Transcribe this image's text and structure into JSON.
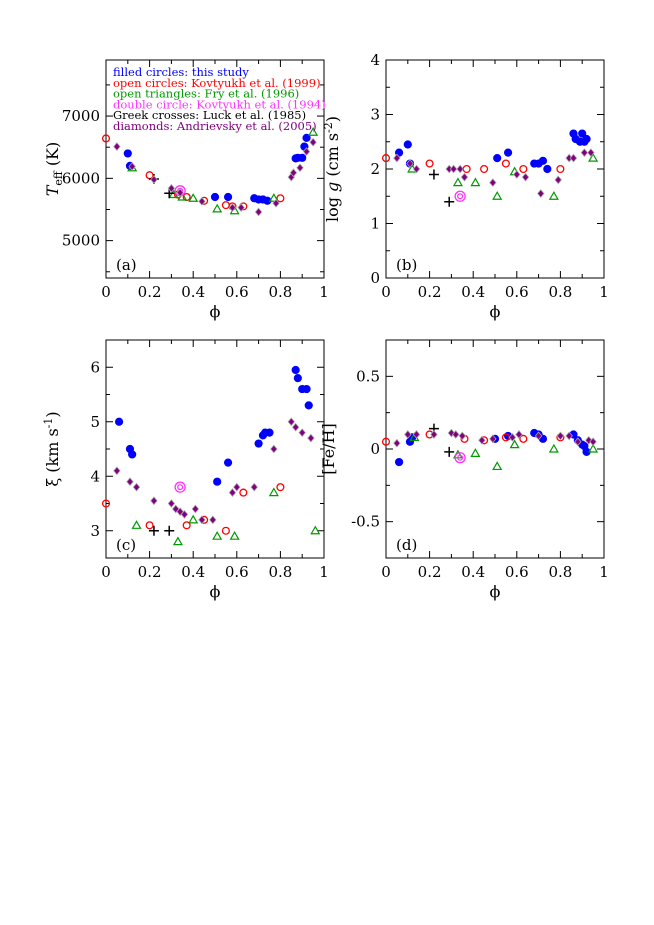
{
  "colors": {
    "this_study": "#0000ff",
    "kovtyukh1999": "#ff0000",
    "fry1996": "#009900",
    "kovtyukh1994": "#ff33ff",
    "luck1985": "#000000",
    "andrievsky2005": "#800080"
  },
  "legend": [
    {
      "text": "filled circles: this study",
      "color": "#0000ff"
    },
    {
      "text": "open circles: Kovtyukh et al. (1999)",
      "color": "#ff0000"
    },
    {
      "text": "open triangles: Fry et al. (1996)",
      "color": "#009900"
    },
    {
      "text": "double circle: Kovtyukh et al. (1994)",
      "color": "#ff33ff"
    },
    {
      "text": "Greek crosses: Luck et al. (1985)",
      "color": "#000000"
    },
    {
      "text": "diamonds: Andrievsky et al. (2005)",
      "color": "#800080"
    }
  ],
  "chart_data": [
    {
      "type": "scatter",
      "panel": "(a)",
      "xlabel": "ϕ",
      "ylabel": "T_eff (K)",
      "xlim": [
        0,
        1
      ],
      "ylim": [
        4400,
        7900
      ],
      "xticks": [
        0,
        0.2,
        0.4,
        0.6,
        0.8,
        1
      ],
      "xtick_labels": [
        "0",
        "0.2",
        "0.4",
        "0.6",
        "0.8",
        "1"
      ],
      "yticks": [
        5000,
        6000,
        7000
      ],
      "ytick_labels": [
        "5000",
        "6000",
        "7000"
      ],
      "grid": false,
      "legend_placement": "top-left",
      "series": [
        {
          "key": "this_study",
          "marker": "filled-circle",
          "x": [
            0.1,
            0.11,
            0.5,
            0.56,
            0.68,
            0.7,
            0.72,
            0.74,
            0.87,
            0.88,
            0.9,
            0.91,
            0.92
          ],
          "y": [
            6400,
            6200,
            5700,
            5700,
            5680,
            5660,
            5660,
            5640,
            6320,
            6330,
            6330,
            6510,
            6650
          ]
        },
        {
          "key": "kovtyukh1999",
          "marker": "open-circle",
          "x": [
            0.0,
            0.2,
            0.33,
            0.37,
            0.45,
            0.55,
            0.58,
            0.63,
            0.8
          ],
          "y": [
            6640,
            6050,
            5740,
            5700,
            5640,
            5570,
            5550,
            5550,
            5680
          ]
        },
        {
          "key": "fry1996",
          "marker": "open-triangle",
          "x": [
            0.12,
            0.31,
            0.35,
            0.4,
            0.51,
            0.59,
            0.77,
            0.95
          ],
          "y": [
            6170,
            5740,
            5700,
            5680,
            5510,
            5480,
            5680,
            6740
          ]
        },
        {
          "key": "kovtyukh1994",
          "marker": "double-circle",
          "x": [
            0.34
          ],
          "y": [
            5800
          ]
        },
        {
          "key": "luck1985",
          "marker": "cross",
          "x": [
            0.22,
            0.29
          ],
          "y": [
            5990,
            5760
          ]
        },
        {
          "key": "andrievsky2005",
          "marker": "diamond",
          "x": [
            0.05,
            0.12,
            0.22,
            0.3,
            0.34,
            0.44,
            0.58,
            0.62,
            0.7,
            0.78,
            0.85,
            0.86,
            0.89,
            0.92,
            0.95
          ],
          "y": [
            6510,
            6190,
            5980,
            5840,
            5770,
            5630,
            5530,
            5530,
            5460,
            5600,
            6020,
            6090,
            6170,
            6430,
            6580
          ]
        }
      ]
    },
    {
      "type": "scatter",
      "panel": "(b)",
      "xlabel": "ϕ",
      "ylabel": "log g (cm s^-2)",
      "xlim": [
        0,
        1
      ],
      "ylim": [
        0,
        4
      ],
      "xticks": [
        0,
        0.2,
        0.4,
        0.6,
        0.8,
        1
      ],
      "xtick_labels": [
        "0",
        "0.2",
        "0.4",
        "0.6",
        "0.8",
        "1"
      ],
      "yticks": [
        0,
        1,
        2,
        3,
        4
      ],
      "ytick_labels": [
        "0",
        "1",
        "2",
        "3",
        "4"
      ],
      "grid": false,
      "series": [
        {
          "key": "this_study",
          "marker": "filled-circle",
          "x": [
            0.06,
            0.1,
            0.11,
            0.51,
            0.56,
            0.68,
            0.7,
            0.72,
            0.74,
            0.86,
            0.87,
            0.89,
            0.9,
            0.91,
            0.92
          ],
          "y": [
            2.3,
            2.45,
            2.1,
            2.2,
            2.3,
            2.1,
            2.1,
            2.15,
            2.0,
            2.65,
            2.55,
            2.5,
            2.65,
            2.5,
            2.55
          ]
        },
        {
          "key": "kovtyukh1999",
          "marker": "open-circle",
          "x": [
            0.0,
            0.2,
            0.37,
            0.45,
            0.55,
            0.63,
            0.8
          ],
          "y": [
            2.2,
            2.1,
            2.0,
            2.0,
            2.1,
            2.0,
            2.0
          ]
        },
        {
          "key": "fry1996",
          "marker": "open-triangle",
          "x": [
            0.12,
            0.33,
            0.41,
            0.51,
            0.59,
            0.77,
            0.95
          ],
          "y": [
            2.0,
            1.75,
            1.75,
            1.5,
            1.95,
            1.5,
            2.2
          ]
        },
        {
          "key": "kovtyukh1994",
          "marker": "double-circle",
          "x": [
            0.34
          ],
          "y": [
            1.5
          ]
        },
        {
          "key": "luck1985",
          "marker": "cross",
          "x": [
            0.22,
            0.29
          ],
          "y": [
            1.9,
            1.4
          ]
        },
        {
          "key": "andrievsky2005",
          "marker": "diamond",
          "x": [
            0.05,
            0.11,
            0.14,
            0.29,
            0.31,
            0.34,
            0.36,
            0.49,
            0.6,
            0.64,
            0.71,
            0.79,
            0.84,
            0.86,
            0.91,
            0.94
          ],
          "y": [
            2.2,
            2.1,
            2.0,
            2.0,
            2.0,
            2.0,
            1.85,
            1.75,
            1.9,
            1.85,
            1.55,
            1.8,
            2.2,
            2.2,
            2.3,
            2.3
          ]
        }
      ]
    },
    {
      "type": "scatter",
      "panel": "(c)",
      "xlabel": "ϕ",
      "ylabel": "ξ (km s^-1)",
      "xlim": [
        0,
        1
      ],
      "ylim": [
        2.5,
        6.5
      ],
      "xticks": [
        0,
        0.2,
        0.4,
        0.6,
        0.8,
        1
      ],
      "xtick_labels": [
        "0",
        "0.2",
        "0.4",
        "0.6",
        "0.8",
        "1"
      ],
      "yticks": [
        3,
        4,
        5,
        6
      ],
      "ytick_labels": [
        "3",
        "4",
        "5",
        "6"
      ],
      "grid": false,
      "series": [
        {
          "key": "this_study",
          "marker": "filled-circle",
          "x": [
            0.06,
            0.11,
            0.12,
            0.51,
            0.56,
            0.7,
            0.72,
            0.73,
            0.75,
            0.87,
            0.88,
            0.9,
            0.92,
            0.93
          ],
          "y": [
            5.0,
            4.5,
            4.4,
            3.9,
            4.25,
            4.6,
            4.75,
            4.8,
            4.8,
            5.95,
            5.8,
            5.6,
            5.6,
            5.3
          ]
        },
        {
          "key": "kovtyukh1999",
          "marker": "open-circle",
          "x": [
            0.0,
            0.2,
            0.37,
            0.45,
            0.55,
            0.63,
            0.8
          ],
          "y": [
            3.5,
            3.1,
            3.1,
            3.2,
            3.0,
            3.7,
            3.8
          ]
        },
        {
          "key": "fry1996",
          "marker": "open-triangle",
          "x": [
            0.14,
            0.33,
            0.4,
            0.51,
            0.59,
            0.77,
            0.96
          ],
          "y": [
            3.1,
            2.8,
            3.2,
            2.9,
            2.9,
            3.7,
            3.0
          ]
        },
        {
          "key": "kovtyukh1994",
          "marker": "double-circle",
          "x": [
            0.34
          ],
          "y": [
            3.8
          ]
        },
        {
          "key": "luck1985",
          "marker": "cross",
          "x": [
            0.22,
            0.29
          ],
          "y": [
            3.0,
            3.0
          ]
        },
        {
          "key": "andrievsky2005",
          "marker": "diamond",
          "x": [
            0.05,
            0.11,
            0.14,
            0.22,
            0.3,
            0.32,
            0.34,
            0.36,
            0.41,
            0.44,
            0.49,
            0.58,
            0.6,
            0.68,
            0.77,
            0.85,
            0.87,
            0.9,
            0.94
          ],
          "y": [
            4.1,
            3.9,
            3.8,
            3.55,
            3.5,
            3.4,
            3.35,
            3.3,
            3.4,
            3.2,
            3.2,
            3.7,
            3.8,
            3.8,
            4.5,
            5.0,
            4.9,
            4.8,
            4.7
          ]
        }
      ]
    },
    {
      "type": "scatter",
      "panel": "(d)",
      "xlabel": "ϕ",
      "ylabel": "[Fe/H]",
      "xlim": [
        0,
        1
      ],
      "ylim": [
        -0.75,
        0.75
      ],
      "xticks": [
        0,
        0.2,
        0.4,
        0.6,
        0.8,
        1
      ],
      "xtick_labels": [
        "0",
        "0.2",
        "0.4",
        "0.6",
        "0.8",
        "1"
      ],
      "yticks": [
        -0.5,
        0,
        0.5
      ],
      "ytick_labels": [
        "-0.5",
        "0",
        "0.5"
      ],
      "grid": false,
      "series": [
        {
          "key": "this_study",
          "marker": "filled-circle",
          "x": [
            0.06,
            0.11,
            0.12,
            0.5,
            0.56,
            0.68,
            0.7,
            0.72,
            0.86,
            0.88,
            0.9,
            0.91,
            0.92
          ],
          "y": [
            -0.09,
            0.05,
            0.08,
            0.07,
            0.09,
            0.11,
            0.1,
            0.07,
            0.1,
            0.06,
            0.03,
            0.02,
            -0.02
          ]
        },
        {
          "key": "kovtyukh1999",
          "marker": "open-circle",
          "x": [
            0.0,
            0.2,
            0.36,
            0.45,
            0.55,
            0.63,
            0.8
          ],
          "y": [
            0.05,
            0.1,
            0.07,
            0.06,
            0.08,
            0.07,
            0.08
          ]
        },
        {
          "key": "fry1996",
          "marker": "open-triangle",
          "x": [
            0.13,
            0.33,
            0.41,
            0.51,
            0.59,
            0.77,
            0.95
          ],
          "y": [
            0.08,
            -0.04,
            -0.03,
            -0.12,
            0.03,
            0.0,
            0.0
          ]
        },
        {
          "key": "kovtyukh1994",
          "marker": "double-circle",
          "x": [
            0.34
          ],
          "y": [
            -0.06
          ]
        },
        {
          "key": "luck1985",
          "marker": "cross",
          "x": [
            0.22,
            0.29
          ],
          "y": [
            0.14,
            -0.02
          ]
        },
        {
          "key": "andrievsky2005",
          "marker": "diamond",
          "x": [
            0.05,
            0.1,
            0.14,
            0.22,
            0.3,
            0.32,
            0.35,
            0.44,
            0.49,
            0.58,
            0.61,
            0.7,
            0.8,
            0.84,
            0.88,
            0.93,
            0.95
          ],
          "y": [
            0.04,
            0.1,
            0.1,
            0.1,
            0.11,
            0.1,
            0.09,
            0.06,
            0.07,
            0.08,
            0.1,
            0.09,
            0.09,
            0.09,
            0.05,
            0.06,
            0.05
          ]
        }
      ]
    }
  ]
}
